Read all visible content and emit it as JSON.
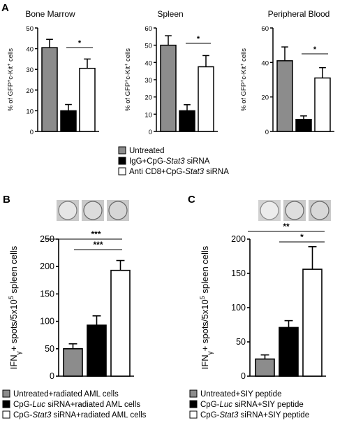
{
  "panels": {
    "A": "A",
    "B": "B",
    "C": "C"
  },
  "colors": {
    "untreated": "#8c8c8c",
    "igg": "#000000",
    "anti": "#ffffff",
    "outline": "#000000"
  },
  "legendA": [
    {
      "label": "Untreated",
      "color": "#8c8c8c"
    },
    {
      "label_parts": [
        "IgG+CpG-",
        "Stat3",
        " siRNA"
      ],
      "color": "#000000"
    },
    {
      "label_parts": [
        "Anti CD8+CpG-",
        "Stat3",
        " siRNA"
      ],
      "color": "#ffffff"
    }
  ],
  "legendB": [
    {
      "label": "Untreated+radiated AML cells",
      "color": "#8c8c8c"
    },
    {
      "label_parts": [
        "CpG-",
        "Luc",
        " siRNA+radiated AML cells"
      ],
      "color": "#000000"
    },
    {
      "label_parts": [
        "CpG-",
        "Stat3",
        " siRNA+radiated AML cells"
      ],
      "color": "#ffffff"
    }
  ],
  "legendC": [
    {
      "label": "Untreated+SIY peptide",
      "color": "#8c8c8c"
    },
    {
      "label_parts": [
        "CpG-",
        "Luc",
        " siRNA+SIY peptide"
      ],
      "color": "#000000"
    },
    {
      "label_parts": [
        "CpG-",
        "Stat3",
        " siRNA+SIY peptide"
      ],
      "color": "#ffffff"
    }
  ],
  "chart_data": [
    {
      "type": "bar",
      "panel": "A",
      "title": "Bone Marrow",
      "ylabel": "% of GFP+c-Kit+ cells",
      "ylim": [
        0,
        50
      ],
      "yticks": [
        0,
        10,
        20,
        30,
        40,
        50
      ],
      "values": [
        40.5,
        10,
        30.5
      ],
      "errors": [
        4,
        3,
        4.5
      ],
      "significance": [
        {
          "from": 1,
          "to": 2,
          "label": "*"
        }
      ]
    },
    {
      "type": "bar",
      "panel": "A",
      "title": "Spleen",
      "ylabel": "% of GFP+c-Kit+ cells",
      "ylim": [
        0,
        60
      ],
      "yticks": [
        0,
        10,
        20,
        30,
        40,
        50,
        60
      ],
      "values": [
        50,
        12,
        37.5
      ],
      "errors": [
        5.5,
        3.5,
        6.5
      ],
      "significance": [
        {
          "from": 1,
          "to": 2,
          "label": "*"
        }
      ]
    },
    {
      "type": "bar",
      "panel": "A",
      "title": "Peripheral Blood",
      "ylabel": "% of GFP+c-Kit+ cells",
      "ylim": [
        0,
        60
      ],
      "yticks": [
        0,
        20,
        40,
        60
      ],
      "values": [
        41,
        7,
        31
      ],
      "errors": [
        8,
        2,
        6
      ],
      "significance": [
        {
          "from": 1,
          "to": 2,
          "label": "*"
        }
      ]
    },
    {
      "type": "bar",
      "panel": "B",
      "title": "",
      "ylabel": "IFNγ+ spots/5x105 spleen cells",
      "ylim": [
        0,
        250
      ],
      "yticks": [
        0,
        50,
        100,
        150,
        200,
        250
      ],
      "values": [
        50,
        93,
        193
      ],
      "errors": [
        9,
        17,
        18
      ],
      "significance": [
        {
          "from": 0,
          "to": 2,
          "label": "***"
        },
        {
          "from": 1,
          "to": 2,
          "label": "***"
        }
      ]
    },
    {
      "type": "bar",
      "panel": "C",
      "title": "",
      "ylabel": "IFNγ+ spots/5x105 spleen cells",
      "ylim": [
        0,
        200
      ],
      "yticks": [
        0,
        50,
        100,
        150,
        200
      ],
      "values": [
        25,
        71,
        156
      ],
      "errors": [
        6,
        10,
        33
      ],
      "significance": [
        {
          "from": 0,
          "to": 2,
          "label": "**"
        },
        {
          "from": 1,
          "to": 2,
          "label": "*"
        }
      ]
    }
  ]
}
